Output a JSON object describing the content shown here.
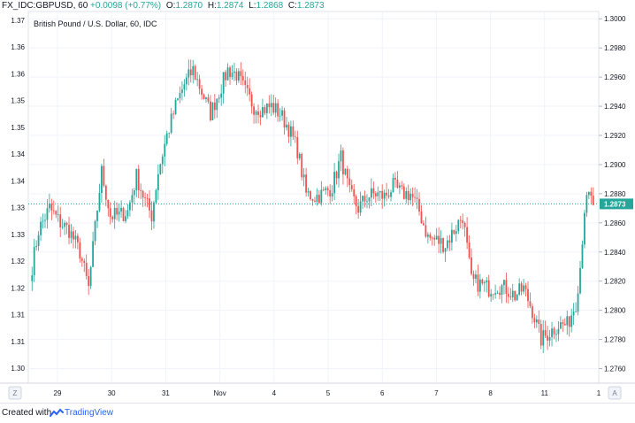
{
  "header": {
    "symbol": "FX_IDC:GBPUSD, 60",
    "change": "+0.0098 (+0.77%)",
    "open_label": "O:",
    "open": "1.2870",
    "high_label": "H:",
    "high": "1.2874",
    "low_label": "L:",
    "low": "1.2868",
    "close_label": "C:",
    "close": "1.2873"
  },
  "footer": {
    "created_with": "Created with",
    "brand": "TradingView",
    "brand_icon": "tradingview-logo-icon"
  },
  "colors": {
    "up": "#26a69a",
    "down": "#ef5350",
    "grid": "#f0f3fa",
    "axis_text": "#131722",
    "price_tag": "#26a69a"
  },
  "chart_data": {
    "type": "candlestick",
    "title": "British Pound / U.S. Dollar, 60, IDC",
    "left_axis": {
      "ticks": [
        "1.37",
        "1.36",
        "1.36",
        "1.35",
        "1.35",
        "1.34",
        "1.34",
        "1.33",
        "1.33",
        "1.32",
        "1.32",
        "1.31",
        "1.31",
        "1.30"
      ]
    },
    "right_axis": {
      "ylim": [
        1.275,
        1.3005
      ],
      "ticks": [
        "1.3000",
        "1.2980",
        "1.2960",
        "1.2940",
        "1.2920",
        "1.2900",
        "1.2880",
        "1.2860",
        "1.2840",
        "1.2820",
        "1.2800",
        "1.2780",
        "1.2760"
      ],
      "last_price": "1.2873"
    },
    "x_axis": {
      "ticks": [
        "29",
        "30",
        "31",
        "Nov",
        "4",
        "5",
        "6",
        "7",
        "8",
        "11",
        "1"
      ],
      "left_icon": "Z",
      "right_icon": "A"
    },
    "anchors": [
      [
        0,
        1.283
      ],
      [
        3,
        1.2855
      ],
      [
        8,
        1.287
      ],
      [
        13,
        1.286
      ],
      [
        17,
        1.2855
      ],
      [
        22,
        1.284
      ],
      [
        26,
        1.2815
      ],
      [
        30,
        1.287
      ],
      [
        32,
        1.2895
      ],
      [
        36,
        1.2865
      ],
      [
        40,
        1.2865
      ],
      [
        44,
        1.2868
      ],
      [
        48,
        1.2892
      ],
      [
        52,
        1.2875
      ],
      [
        55,
        1.2865
      ],
      [
        58,
        1.2895
      ],
      [
        62,
        1.292
      ],
      [
        66,
        1.294
      ],
      [
        70,
        1.2955
      ],
      [
        74,
        1.2965
      ],
      [
        78,
        1.295
      ],
      [
        82,
        1.2935
      ],
      [
        86,
        1.295
      ],
      [
        90,
        1.2965
      ],
      [
        94,
        1.2962
      ],
      [
        98,
        1.295
      ],
      [
        102,
        1.294
      ],
      [
        106,
        1.2938
      ],
      [
        110,
        1.294
      ],
      [
        114,
        1.2935
      ],
      [
        118,
        1.2925
      ],
      [
        122,
        1.291
      ],
      [
        126,
        1.288
      ],
      [
        130,
        1.2878
      ],
      [
        134,
        1.288
      ],
      [
        138,
        1.2885
      ],
      [
        142,
        1.2905
      ],
      [
        146,
        1.288
      ],
      [
        150,
        1.287
      ],
      [
        154,
        1.2878
      ],
      [
        158,
        1.288
      ],
      [
        162,
        1.2878
      ],
      [
        166,
        1.2885
      ],
      [
        170,
        1.288
      ],
      [
        174,
        1.288
      ],
      [
        178,
        1.2868
      ],
      [
        182,
        1.285
      ],
      [
        186,
        1.2848
      ],
      [
        190,
        1.2845
      ],
      [
        194,
        1.2855
      ],
      [
        198,
        1.2865
      ],
      [
        202,
        1.282
      ],
      [
        206,
        1.2818
      ],
      [
        210,
        1.2815
      ],
      [
        214,
        1.2817
      ],
      [
        218,
        1.2815
      ],
      [
        222,
        1.281
      ],
      [
        226,
        1.2815
      ],
      [
        230,
        1.28
      ],
      [
        234,
        1.278
      ],
      [
        238,
        1.2785
      ],
      [
        242,
        1.279
      ],
      [
        246,
        1.279
      ],
      [
        250,
        1.2805
      ],
      [
        252,
        1.283
      ],
      [
        254,
        1.287
      ],
      [
        256,
        1.2878
      ],
      [
        258,
        1.2873
      ]
    ],
    "candle_count": 259
  }
}
